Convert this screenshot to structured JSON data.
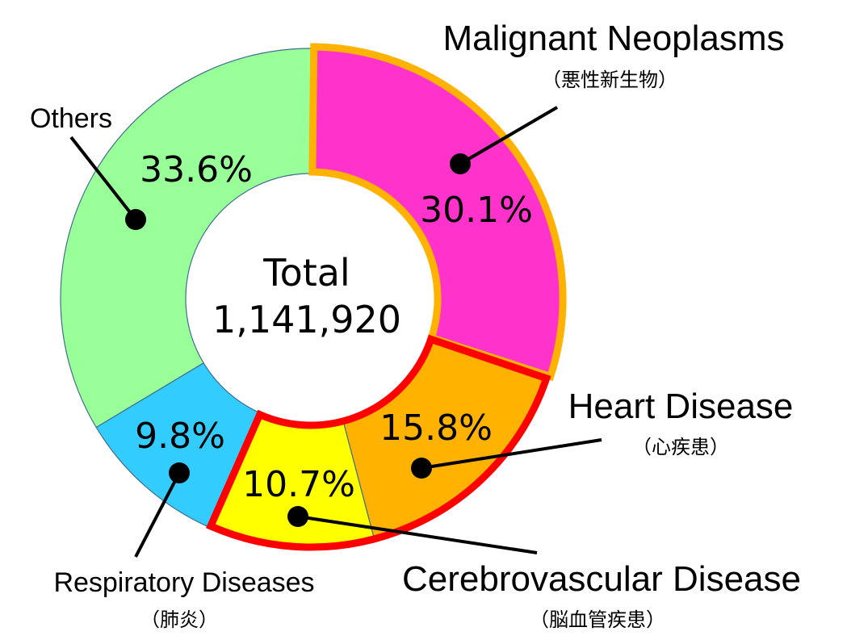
{
  "chart_data": {
    "type": "pie",
    "variant": "donut",
    "center": {
      "label": "Total",
      "value": "1,141,920"
    },
    "slices": [
      {
        "name": "Malignant Neoplasms",
        "name_ja": "（悪性新生物）",
        "value": 30.1,
        "value_label": "30.1%",
        "color": "#ff33cc"
      },
      {
        "name": "Heart Disease",
        "name_ja": "（心疾患）",
        "value": 15.8,
        "value_label": "15.8%",
        "color": "#ffb300"
      },
      {
        "name": "Cerebrovascular Disease",
        "name_ja": "（脳血管疾患）",
        "value": 10.7,
        "value_label": "10.7%",
        "color": "#ffff00"
      },
      {
        "name": "Respiratory Diseases",
        "name_ja": "（肺炎）",
        "value": 9.8,
        "value_label": "9.8%",
        "color": "#33ccff"
      },
      {
        "name": "Others",
        "name_ja": "",
        "value": 33.6,
        "value_label": "33.6%",
        "color": "#99ff99"
      }
    ],
    "highlight": {
      "orange_outline_slices": [
        "Malignant Neoplasms"
      ],
      "red_outline_slices": [
        "Heart Disease",
        "Cerebrovascular Disease"
      ],
      "orange_outline_color": "#ffb300",
      "red_outline_color": "#ff0000"
    }
  }
}
